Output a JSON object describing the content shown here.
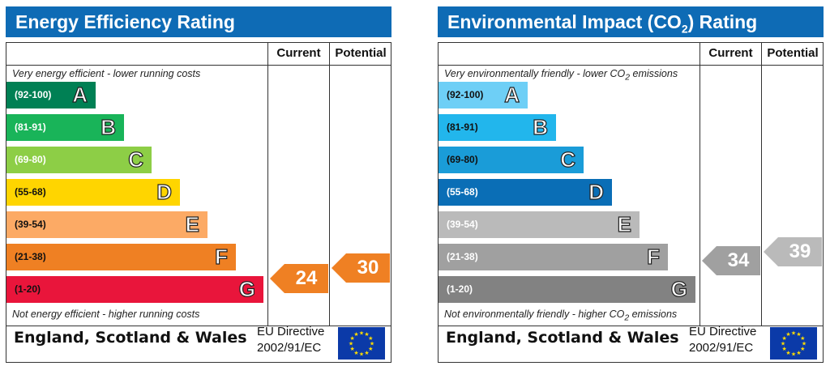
{
  "chart_data": [
    {
      "type": "epc-rating",
      "title": "Energy Efficiency Rating",
      "columns": [
        "Current",
        "Potential"
      ],
      "top_note": "Very energy efficient - lower running costs",
      "bottom_note": "Not energy efficient - higher running costs",
      "bands": [
        {
          "range": "(92-100)",
          "letter": "A",
          "color": "#008054"
        },
        {
          "range": "(81-91)",
          "letter": "B",
          "color": "#19b459"
        },
        {
          "range": "(69-80)",
          "letter": "C",
          "color": "#8dce46"
        },
        {
          "range": "(55-68)",
          "letter": "D",
          "color": "#ffd500"
        },
        {
          "range": "(39-54)",
          "letter": "E",
          "color": "#fcaa65"
        },
        {
          "range": "(21-38)",
          "letter": "F",
          "color": "#ef8023"
        },
        {
          "range": "(1-20)",
          "letter": "G",
          "color": "#e9153b"
        }
      ],
      "current": {
        "value": 24,
        "band": "F",
        "color": "#ef8023"
      },
      "potential": {
        "value": 30,
        "band": "F",
        "color": "#ef8023"
      },
      "footer_region": "England, Scotland & Wales",
      "footer_directive_line1": "EU Directive",
      "footer_directive_line2": "2002/91/EC"
    },
    {
      "type": "epc-rating",
      "title_main": "Environmental Impact (CO",
      "title_sub": "2",
      "title_end": ") Rating",
      "columns": [
        "Current",
        "Potential"
      ],
      "top_note_main": "Very environmentally friendly - lower CO",
      "top_note_sub": "2",
      "top_note_end": " emissions",
      "bottom_note_main": "Not environmentally friendly - higher CO",
      "bottom_note_sub": "2",
      "bottom_note_end": " emissions",
      "bands": [
        {
          "range": "(92-100)",
          "letter": "A",
          "color": "#6ecff6"
        },
        {
          "range": "(81-91)",
          "letter": "B",
          "color": "#22b6ec"
        },
        {
          "range": "(69-80)",
          "letter": "C",
          "color": "#1a9cd8"
        },
        {
          "range": "(55-68)",
          "letter": "D",
          "color": "#0a6eb6"
        },
        {
          "range": "(39-54)",
          "letter": "E",
          "color": "#bababa"
        },
        {
          "range": "(21-38)",
          "letter": "F",
          "color": "#a0a0a0"
        },
        {
          "range": "(1-20)",
          "letter": "G",
          "color": "#828282"
        }
      ],
      "current": {
        "value": 34,
        "band": "F",
        "color": "#a0a0a0"
      },
      "potential": {
        "value": 39,
        "band": "E",
        "color": "#bababa"
      },
      "footer_region": "England, Scotland & Wales",
      "footer_directive_line1": "EU Directive",
      "footer_directive_line2": "2002/91/EC"
    }
  ],
  "colors": {
    "title_bar": "#0e6bb5",
    "eu_flag": "#0b3aa8",
    "eu_stars": "#ffdd00"
  }
}
